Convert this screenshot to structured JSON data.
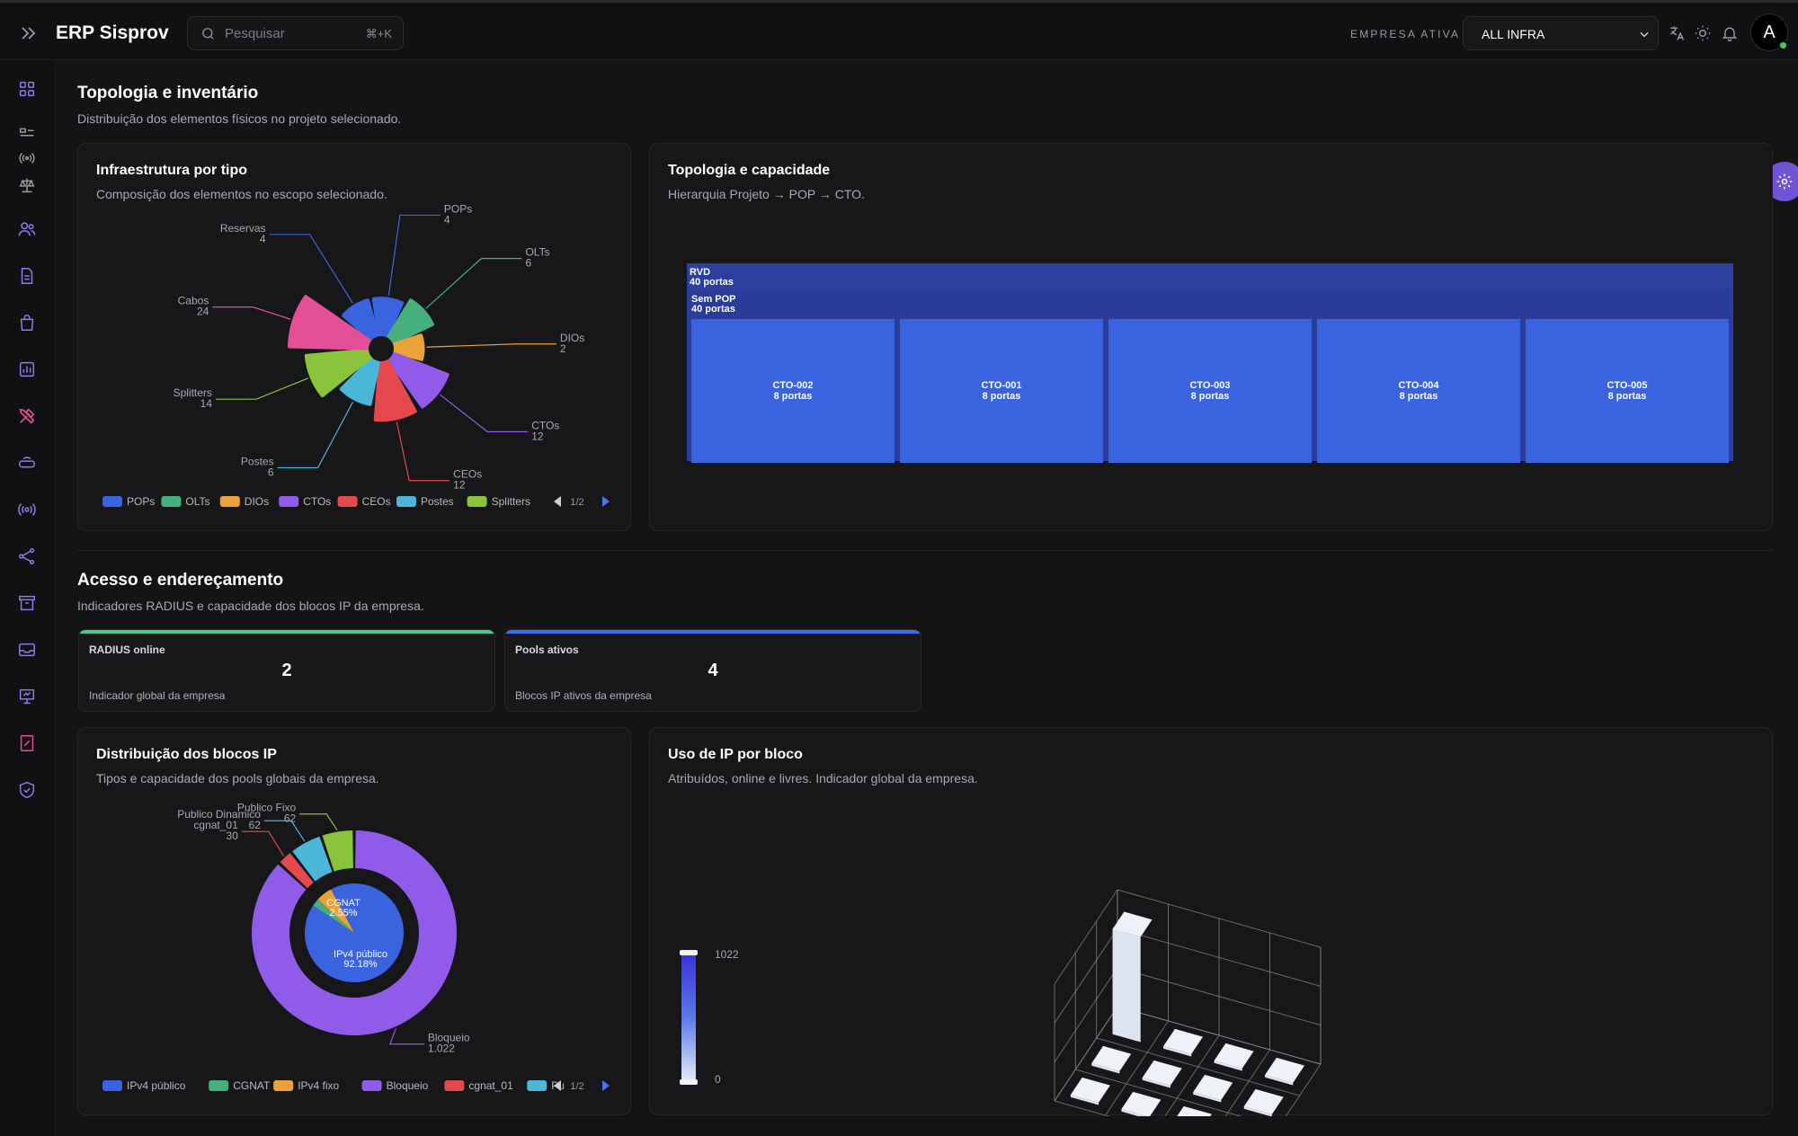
{
  "header": {
    "app_title": "ERP Sisprov",
    "search_placeholder": "Pesquisar",
    "search_shortcut": "⌘+K",
    "company_label": "EMPRESA ATIVA",
    "company_value": "ALL INFRA",
    "avatar_initial": "A"
  },
  "sidebar": {
    "icons": [
      "grid-icon",
      "devices-icon",
      "signal-icon",
      "scale-icon",
      "users-icon",
      "document-icon",
      "shopping-bag-icon",
      "bar-chart-icon",
      "tools-icon",
      "router-icon",
      "broadcast-icon",
      "share-icon",
      "archive-icon",
      "inbox-icon",
      "presentation-icon",
      "percent-document-icon",
      "shield-check-icon"
    ]
  },
  "topology_section": {
    "title": "Topologia e inventário",
    "subtitle": "Distribuição dos elementos físicos no projeto selecionado."
  },
  "infra_card": {
    "title": "Infraestrutura por tipo",
    "subtitle": "Composição dos elementos no escopo selecionado.",
    "legend": [
      "POPs",
      "OLTs",
      "DIOs",
      "CTOs",
      "CEOs",
      "Postes",
      "Splitters"
    ],
    "pager": "1/2"
  },
  "topology_card": {
    "title": "Topologia e capacidade",
    "subtitle": "Hierarquia Projeto → POP → CTO.",
    "project": {
      "name": "RVD",
      "ports": "40 portas"
    },
    "pop": {
      "name": "Sem POP",
      "ports": "40 portas"
    },
    "ctos": [
      {
        "name": "CTO-002",
        "ports": "8 portas"
      },
      {
        "name": "CTO-001",
        "ports": "8 portas"
      },
      {
        "name": "CTO-003",
        "ports": "8 portas"
      },
      {
        "name": "CTO-004",
        "ports": "8 portas"
      },
      {
        "name": "CTO-005",
        "ports": "8 portas"
      }
    ]
  },
  "access_section": {
    "title": "Acesso e endereçamento",
    "subtitle": "Indicadores RADIUS e capacidade dos blocos IP da empresa."
  },
  "kpis": [
    {
      "label": "RADIUS online",
      "value": "2",
      "desc": "Indicador global da empresa",
      "color": "#3ecf8e"
    },
    {
      "label": "Pools ativos",
      "value": "4",
      "desc": "Blocos IP ativos da empresa",
      "color": "#3b6ef0"
    }
  ],
  "ip_dist_card": {
    "title": "Distribuição dos blocos IP",
    "subtitle": "Tipos e capacidade dos pools globais da empresa.",
    "legend": [
      "IPv4 público",
      "CGNAT",
      "IPv4 fixo",
      "Bloqueio",
      "cgnat_01",
      "Pu"
    ],
    "pager": "1/2"
  },
  "ip_usage_card": {
    "title": "Uso de IP por bloco",
    "subtitle": "Atribuídos, online e livres. Indicador global da empresa."
  },
  "chart_data": [
    {
      "type": "pie",
      "title": "Infraestrutura por tipo",
      "categories": [
        "Reservas",
        "POPs",
        "OLTs",
        "DIOs",
        "CTOs",
        "CEOs",
        "Postes",
        "Splitters",
        "Cabos"
      ],
      "values": [
        4,
        4,
        6,
        2,
        12,
        12,
        6,
        14,
        24
      ],
      "colors": [
        "#3a63e0",
        "#3a63e0",
        "#45b07e",
        "#eaa23a",
        "#8f5be8",
        "#e5484d",
        "#4ab7d8",
        "#8ac43a",
        "#e44f98"
      ]
    },
    {
      "type": "pie",
      "title": "Distribuição dos blocos IP",
      "inner": [
        {
          "name": "IPv4 público",
          "value": 92.18,
          "label": "92.18%",
          "color": "#3a63e0"
        },
        {
          "name": "CGNAT",
          "value": 2.55,
          "label": "2.55%",
          "color": "#45b07e"
        },
        {
          "name": "IPv4 fixo",
          "value": 5.27,
          "label": "",
          "color": "#eaa23a"
        }
      ],
      "outer": [
        {
          "name": "Bloqueio",
          "value": 1022,
          "label": "1.022",
          "color": "#8f5be8"
        },
        {
          "name": "cgnat_01",
          "value": 30,
          "label": "30",
          "color": "#e5484d"
        },
        {
          "name": "Publico Dinamico",
          "value": 62,
          "label": "62",
          "color": "#4ab7d8"
        },
        {
          "name": "Publico Fixo",
          "value": 62,
          "label": "62",
          "color": "#8ac43a"
        }
      ]
    },
    {
      "type": "bar",
      "title": "Uso de IP por bloco",
      "scale": {
        "min": 0,
        "max": 1022
      },
      "values": [
        [
          1022,
          0,
          0,
          0
        ],
        [
          0,
          0,
          0,
          0
        ],
        [
          0,
          0,
          0,
          0
        ]
      ]
    }
  ]
}
